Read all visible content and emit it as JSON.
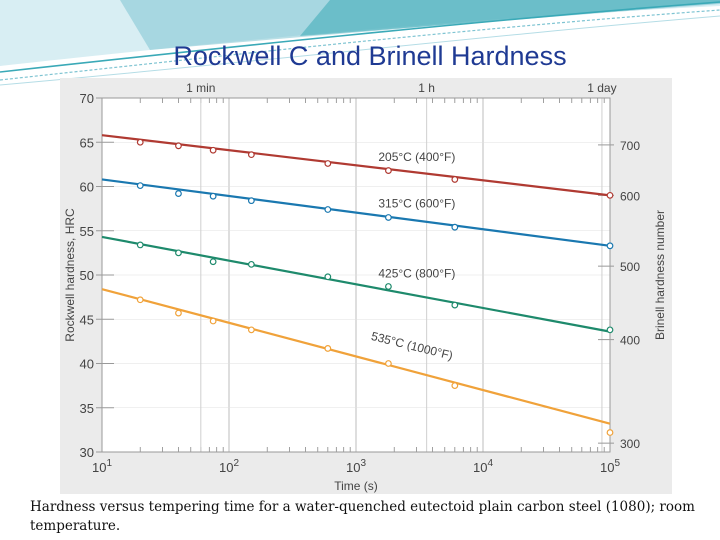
{
  "slide": {
    "title": "Rockwell C and Brinell Hardness",
    "caption": "Hardness versus tempering time for a water-quenched eutectoid plain carbon steel (1080); room temperature."
  },
  "colors": {
    "title": "#1f3a93",
    "plot_bg": "#ebebeb",
    "grid": "#bdbdbd",
    "header_teal": "#3aa9b7"
  },
  "chart_data": {
    "type": "line",
    "xlabel": "Time (s)",
    "ylabel": "Rockwell hardness, HRC",
    "y2label": "Brinell hardness number",
    "xscale": "log",
    "xlim": [
      10,
      100000
    ],
    "ylim": [
      30,
      70
    ],
    "x_ticks": [
      {
        "base": "10",
        "exp": "1"
      },
      {
        "base": "10",
        "exp": "2"
      },
      {
        "base": "10",
        "exp": "3"
      },
      {
        "base": "10",
        "exp": "4"
      },
      {
        "base": "10",
        "exp": "5"
      }
    ],
    "y_ticks": [
      "30",
      "35",
      "40",
      "45",
      "50",
      "55",
      "60",
      "65",
      "70"
    ],
    "top_ticks": [
      {
        "label": "1 min",
        "x": 60
      },
      {
        "label": "1 h",
        "x": 3600
      },
      {
        "label": "1 day",
        "x": 86400
      }
    ],
    "y2_ticks": [
      {
        "label": "300",
        "hrc": 31.0
      },
      {
        "label": "400",
        "hrc": 42.7
      },
      {
        "label": "500",
        "hrc": 51.0
      },
      {
        "label": "600",
        "hrc": 59.0
      },
      {
        "label": "700",
        "hrc": 64.7
      }
    ],
    "grid": true,
    "series": [
      {
        "name": "205°C (400°F)",
        "color": "#b03a32",
        "line": [
          [
            10,
            65.8
          ],
          [
            100000,
            59.0
          ]
        ],
        "points": [
          [
            20,
            65.0
          ],
          [
            40,
            64.6
          ],
          [
            75,
            64.1
          ],
          [
            150,
            63.6
          ],
          [
            600,
            62.6
          ],
          [
            1800,
            61.8
          ],
          [
            6000,
            60.8
          ],
          [
            100000,
            59.0
          ]
        ]
      },
      {
        "name": "315°C (600°F)",
        "color": "#1a78b0",
        "line": [
          [
            10,
            60.8
          ],
          [
            100000,
            53.3
          ]
        ],
        "points": [
          [
            20,
            60.1
          ],
          [
            40,
            59.2
          ],
          [
            75,
            58.9
          ],
          [
            150,
            58.4
          ],
          [
            600,
            57.4
          ],
          [
            1800,
            56.5
          ],
          [
            6000,
            55.4
          ],
          [
            100000,
            53.3
          ]
        ]
      },
      {
        "name": "425°C (800°F)",
        "color": "#1e8a6c",
        "line": [
          [
            10,
            54.3
          ],
          [
            100000,
            43.6
          ]
        ],
        "points": [
          [
            20,
            53.4
          ],
          [
            40,
            52.5
          ],
          [
            75,
            51.5
          ],
          [
            150,
            51.2
          ],
          [
            600,
            49.8
          ],
          [
            1800,
            48.7
          ],
          [
            6000,
            46.6
          ],
          [
            100000,
            43.8
          ]
        ]
      },
      {
        "name": "535°C (1000°F)",
        "color": "#f0a23a",
        "line": [
          [
            10,
            48.4
          ],
          [
            100000,
            33.2
          ]
        ],
        "points": [
          [
            20,
            47.2
          ],
          [
            40,
            45.7
          ],
          [
            75,
            44.8
          ],
          [
            150,
            43.8
          ],
          [
            600,
            41.7
          ],
          [
            1800,
            40.0
          ],
          [
            6000,
            37.5
          ],
          [
            100000,
            32.2
          ]
        ]
      }
    ]
  }
}
